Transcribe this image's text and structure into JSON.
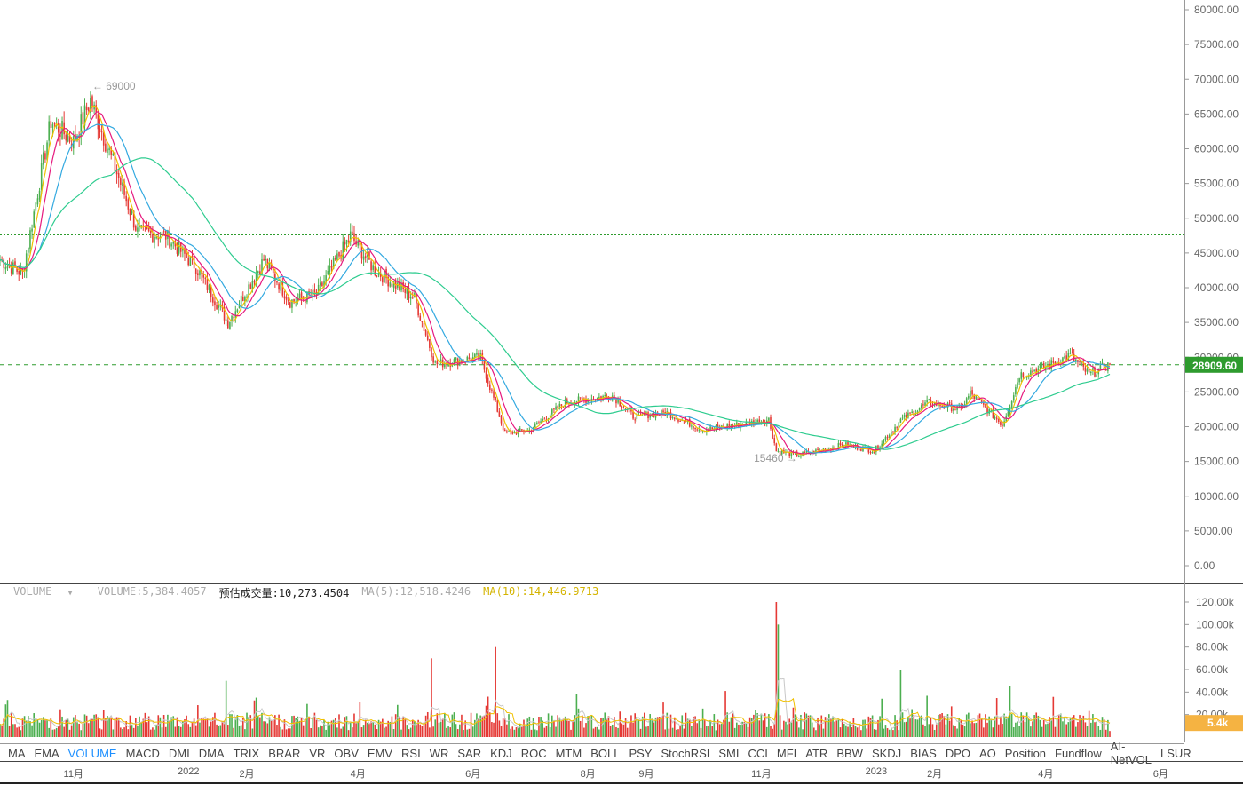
{
  "colors": {
    "up": "#4caf50",
    "down": "#e53935",
    "ma5": "#f0c000",
    "ma10": "#e6197e",
    "ma20": "#33a9e0",
    "ma60": "#2ecc8f",
    "current_price_bg": "#2e9b2e",
    "volume_badge_bg": "#f5b342",
    "active_indicator": "#1e90ff"
  },
  "chart_data": [
    {
      "type": "candlestick",
      "y_ticks": [
        "80000.00",
        "75000.00",
        "70000.00",
        "65000.00",
        "60000.00",
        "55000.00",
        "50000.00",
        "45000.00",
        "40000.00",
        "35000.00",
        "30000.00",
        "25000.00",
        "20000.00",
        "15000.00",
        "10000.00",
        "5000.00",
        "0.00"
      ],
      "ylim": [
        0,
        81500
      ],
      "current_price": 28909.6,
      "current_price_label": "28909.60",
      "horizontal_line": 47600,
      "high_marker": {
        "date": "2021-11-10",
        "value": 69000,
        "label": "← 69000"
      },
      "low_marker": {
        "date": "2022-11-21",
        "value": 15460,
        "label": "15460 →"
      },
      "ma_lines": [
        "MA5",
        "MA10",
        "MA20",
        "MA60"
      ],
      "key_prices": [
        {
          "date": "2021-09-23",
          "value": 44000
        },
        {
          "date": "2021-10-05",
          "value": 42000
        },
        {
          "date": "2021-10-20",
          "value": 64000
        },
        {
          "date": "2021-11-01",
          "value": 61000
        },
        {
          "date": "2021-11-10",
          "value": 67000
        },
        {
          "date": "2021-11-26",
          "value": 55000
        },
        {
          "date": "2021-12-05",
          "value": 48000
        },
        {
          "date": "2021-12-20",
          "value": 47500
        },
        {
          "date": "2022-01-05",
          "value": 43000
        },
        {
          "date": "2022-01-22",
          "value": 35000
        },
        {
          "date": "2022-02-10",
          "value": 44000
        },
        {
          "date": "2022-02-24",
          "value": 38000
        },
        {
          "date": "2022-03-10",
          "value": 39000
        },
        {
          "date": "2022-03-28",
          "value": 47500
        },
        {
          "date": "2022-04-10",
          "value": 42500
        },
        {
          "date": "2022-05-01",
          "value": 38500
        },
        {
          "date": "2022-05-12",
          "value": 29000
        },
        {
          "date": "2022-06-05",
          "value": 30000
        },
        {
          "date": "2022-06-18",
          "value": 19000
        },
        {
          "date": "2022-07-01",
          "value": 19500
        },
        {
          "date": "2022-07-20",
          "value": 23500
        },
        {
          "date": "2022-08-14",
          "value": 24500
        },
        {
          "date": "2022-08-25",
          "value": 21500
        },
        {
          "date": "2022-09-12",
          "value": 22000
        },
        {
          "date": "2022-10-01",
          "value": 19500
        },
        {
          "date": "2022-10-25",
          "value": 20500
        },
        {
          "date": "2022-11-05",
          "value": 21000
        },
        {
          "date": "2022-11-09",
          "value": 16500
        },
        {
          "date": "2022-11-21",
          "value": 15900
        },
        {
          "date": "2022-12-15",
          "value": 17400
        },
        {
          "date": "2022-12-31",
          "value": 16550
        },
        {
          "date": "2023-01-14",
          "value": 20900
        },
        {
          "date": "2023-01-29",
          "value": 23500
        },
        {
          "date": "2023-02-15",
          "value": 22500
        },
        {
          "date": "2023-02-20",
          "value": 24800
        },
        {
          "date": "2023-03-09",
          "value": 20300
        },
        {
          "date": "2023-03-15",
          "value": 24800
        },
        {
          "date": "2023-03-18",
          "value": 27500
        },
        {
          "date": "2023-03-31",
          "value": 28500
        },
        {
          "date": "2023-04-14",
          "value": 30300
        },
        {
          "date": "2023-04-24",
          "value": 27500
        },
        {
          "date": "2023-05-01",
          "value": 28500
        },
        {
          "date": "2023-05-05",
          "value": 28909.6
        }
      ]
    },
    {
      "type": "bar",
      "title": "VOLUME",
      "y_ticks": [
        "120.00k",
        "100.00k",
        "80.00k",
        "60.00k",
        "40.00k",
        "20.00k"
      ],
      "ylim": [
        0,
        125000
      ],
      "current_volume_label": "5.4k",
      "spikes": [
        {
          "date": "2022-01-21",
          "value": 50000
        },
        {
          "date": "2022-05-10",
          "value": 70000
        },
        {
          "date": "2022-06-13",
          "value": 80000
        },
        {
          "date": "2022-11-09",
          "value": 120000
        },
        {
          "date": "2022-11-10",
          "value": 100000
        },
        {
          "date": "2023-01-14",
          "value": 60000
        },
        {
          "date": "2023-03-13",
          "value": 45000
        }
      ]
    }
  ],
  "volume_legend": {
    "selector": "VOLUME",
    "volume": "VOLUME:5,384.4057",
    "estimated": "预估成交量:10,273.4504",
    "ma5": "MA(5):12,518.4246",
    "ma10": "MA(10):14,446.9713"
  },
  "indicators": [
    "MA",
    "EMA",
    "VOLUME",
    "MACD",
    "DMI",
    "DMA",
    "TRIX",
    "BRAR",
    "VR",
    "OBV",
    "EMV",
    "RSI",
    "WR",
    "SAR",
    "KDJ",
    "ROC",
    "MTM",
    "BOLL",
    "PSY",
    "StochRSI",
    "SMI",
    "CCI",
    "MFI",
    "ATR",
    "BBW",
    "SKDJ",
    "BIAS",
    "DPO",
    "AO",
    "Position",
    "Fundflow",
    "AI-NetVOL",
    "LSUR"
  ],
  "active_indicator": "VOLUME",
  "time_axis": [
    {
      "label": "11月",
      "date": "2021-11-01"
    },
    {
      "label": "2022",
      "date": "2022-01-01"
    },
    {
      "label": "2月",
      "date": "2022-02-01"
    },
    {
      "label": "4月",
      "date": "2022-04-01"
    },
    {
      "label": "6月",
      "date": "2022-06-01"
    },
    {
      "label": "8月",
      "date": "2022-08-01"
    },
    {
      "label": "9月",
      "date": "2022-09-01"
    },
    {
      "label": "11月",
      "date": "2022-11-01"
    },
    {
      "label": "2023",
      "date": "2023-01-01"
    },
    {
      "label": "2月",
      "date": "2023-02-01"
    },
    {
      "label": "4月",
      "date": "2023-04-01"
    },
    {
      "label": "6月",
      "date": "2023-06-01"
    }
  ]
}
